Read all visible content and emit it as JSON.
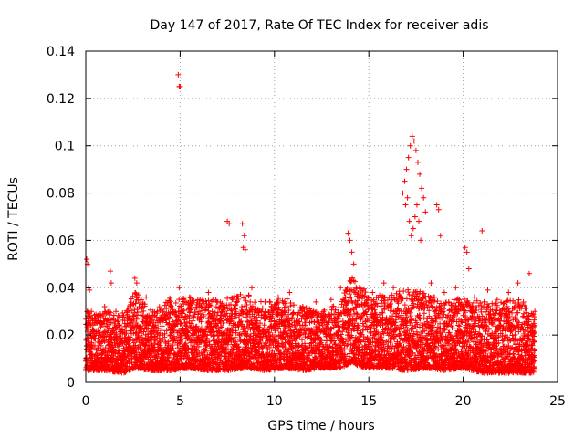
{
  "chart_data": {
    "type": "scatter",
    "title": "Day 147 of 2017, Rate Of TEC Index for receiver adis",
    "xlabel": "GPS time / hours",
    "ylabel": "ROTI / TECUs",
    "xlim": [
      0,
      25
    ],
    "ylim": [
      0,
      0.14
    ],
    "xticks": [
      0,
      5,
      10,
      15,
      20,
      25
    ],
    "yticks": [
      0,
      0.02,
      0.04,
      0.06,
      0.08,
      0.1,
      0.12,
      0.14
    ],
    "xtick_labels": [
      "0",
      "5",
      "10",
      "15",
      "20",
      "25"
    ],
    "ytick_labels": [
      "0",
      "0.02",
      "0.04",
      "0.06",
      "0.08",
      "0.1",
      "0.12",
      "0.14"
    ],
    "grid": true,
    "marker": "plus",
    "color": "#ff0000",
    "series": [
      {
        "name": "ROTI",
        "x": [
          0.05,
          0.1,
          0.15,
          0.2,
          0.1,
          0.15,
          1.3,
          1.35,
          2.6,
          2.7,
          2.8,
          4.9,
          4.95,
          5.0,
          4.95,
          7.5,
          7.6,
          8.3,
          8.4,
          8.35,
          8.45,
          13.9,
          14.0,
          14.1,
          14.2,
          16.8,
          16.9,
          17.0,
          17.1,
          17.2,
          17.3,
          17.4,
          17.5,
          17.6,
          17.7,
          17.8,
          17.9,
          18.0,
          17.35,
          17.45,
          17.55,
          17.65,
          17.75,
          16.95,
          17.05,
          17.15,
          17.25,
          18.6,
          18.7,
          18.8,
          20.1,
          20.2,
          20.3,
          21.0,
          0.3,
          0.6,
          1.0,
          1.6,
          2.2,
          3.2,
          3.8,
          4.5,
          5.5,
          6.0,
          6.5,
          7.0,
          8.0,
          8.8,
          9.5,
          10.2,
          10.8,
          11.5,
          12.2,
          13.0,
          13.5,
          14.5,
          15.2,
          15.8,
          16.3,
          18.3,
          19.0,
          19.6,
          20.6,
          21.3,
          21.8,
          22.4,
          22.9,
          23.5,
          23.8
        ],
        "y": [
          0.052,
          0.05,
          0.04,
          0.039,
          0.025,
          0.03,
          0.047,
          0.042,
          0.044,
          0.042,
          0.037,
          0.13,
          0.125,
          0.125,
          0.04,
          0.068,
          0.067,
          0.067,
          0.062,
          0.057,
          0.056,
          0.063,
          0.06,
          0.055,
          0.05,
          0.08,
          0.085,
          0.09,
          0.095,
          0.1,
          0.104,
          0.102,
          0.098,
          0.093,
          0.088,
          0.082,
          0.078,
          0.072,
          0.065,
          0.07,
          0.075,
          0.068,
          0.06,
          0.075,
          0.078,
          0.068,
          0.062,
          0.075,
          0.073,
          0.062,
          0.057,
          0.055,
          0.048,
          0.064,
          0.03,
          0.028,
          0.032,
          0.03,
          0.03,
          0.036,
          0.03,
          0.032,
          0.036,
          0.03,
          0.038,
          0.034,
          0.036,
          0.04,
          0.034,
          0.036,
          0.038,
          0.032,
          0.034,
          0.035,
          0.04,
          0.04,
          0.038,
          0.042,
          0.04,
          0.042,
          0.038,
          0.04,
          0.036,
          0.039,
          0.035,
          0.038,
          0.042,
          0.046,
          0.03
        ]
      }
    ],
    "dense_band": [
      [
        0.0,
        0.005,
        0.03
      ],
      [
        1.0,
        0.005,
        0.03
      ],
      [
        2.0,
        0.004,
        0.03
      ],
      [
        2.6,
        0.006,
        0.038
      ],
      [
        3.5,
        0.005,
        0.03
      ],
      [
        4.5,
        0.005,
        0.036
      ],
      [
        5.5,
        0.006,
        0.036
      ],
      [
        6.5,
        0.005,
        0.035
      ],
      [
        7.5,
        0.005,
        0.036
      ],
      [
        8.5,
        0.006,
        0.038
      ],
      [
        9.5,
        0.005,
        0.034
      ],
      [
        10.5,
        0.006,
        0.036
      ],
      [
        11.5,
        0.005,
        0.032
      ],
      [
        12.5,
        0.006,
        0.03
      ],
      [
        13.5,
        0.006,
        0.034
      ],
      [
        14.0,
        0.008,
        0.045
      ],
      [
        15.0,
        0.006,
        0.038
      ],
      [
        16.0,
        0.006,
        0.036
      ],
      [
        17.0,
        0.005,
        0.04
      ],
      [
        18.0,
        0.006,
        0.038
      ],
      [
        19.0,
        0.005,
        0.034
      ],
      [
        20.0,
        0.006,
        0.036
      ],
      [
        21.0,
        0.004,
        0.034
      ],
      [
        22.0,
        0.004,
        0.034
      ],
      [
        23.0,
        0.004,
        0.036
      ],
      [
        23.8,
        0.004,
        0.028
      ]
    ]
  }
}
